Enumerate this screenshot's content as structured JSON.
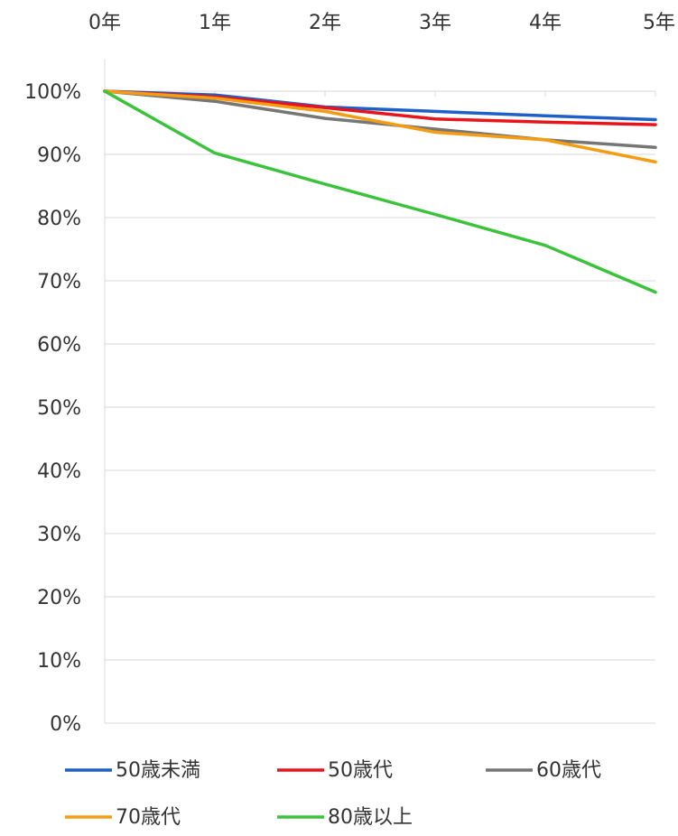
{
  "chart_data": {
    "type": "line",
    "title": "",
    "xlabel": "",
    "ylabel": "",
    "x": [
      "0年",
      "1年",
      "2年",
      "3年",
      "4年",
      "5年"
    ],
    "ylim": [
      0,
      100
    ],
    "y_ticks": [
      "0%",
      "10%",
      "20%",
      "30%",
      "40%",
      "50%",
      "60%",
      "70%",
      "80%",
      "90%",
      "100%"
    ],
    "x_axis_position": "top",
    "grid": "horizontal",
    "legend_position": "bottom",
    "series": [
      {
        "name": "50歳未満",
        "color": "#1f5fc8",
        "values": [
          100,
          99.4,
          97.5,
          96.8,
          96.1,
          95.5
        ]
      },
      {
        "name": "50歳代",
        "color": "#e8141c",
        "values": [
          100,
          99.1,
          97.4,
          95.6,
          95.1,
          94.7
        ]
      },
      {
        "name": "60歳代",
        "color": "#767676",
        "values": [
          100,
          98.4,
          95.7,
          94.0,
          92.3,
          91.1
        ]
      },
      {
        "name": "70歳代",
        "color": "#f59d12",
        "values": [
          100,
          98.9,
          96.8,
          93.5,
          92.3,
          88.8
        ]
      },
      {
        "name": "80歳以上",
        "color": "#3cc33c",
        "values": [
          100,
          90.2,
          85.3,
          80.5,
          75.6,
          68.2
        ]
      }
    ]
  }
}
